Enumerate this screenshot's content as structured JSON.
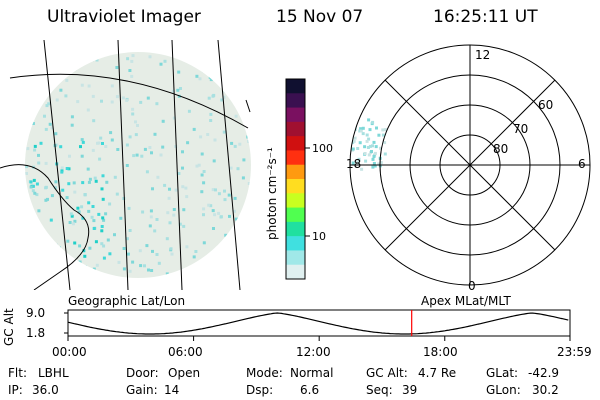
{
  "header": {
    "title": "Ultraviolet Imager",
    "date": "15 Nov 07",
    "time": "16:25:11 UT"
  },
  "colorbar": {
    "unit": "photon cm⁻²s⁻¹",
    "ticks": [
      "100",
      "10"
    ],
    "colors": [
      "#101030",
      "#3a1050",
      "#7a1060",
      "#a01030",
      "#d01010",
      "#ff3010",
      "#ff9a10",
      "#ffdd20",
      "#c8ff20",
      "#50ff50",
      "#20e0a0",
      "#40e0e0",
      "#a0e8e8",
      "#e0f0f0"
    ]
  },
  "map_left": {
    "caption": "Geographic Lat/Lon"
  },
  "map_right": {
    "caption": "Apex MLat/MLT",
    "hours": {
      "top": "12",
      "left": "18",
      "right": "6",
      "bottom": "0"
    },
    "lats": [
      "60",
      "70",
      "80"
    ]
  },
  "altitude_plot": {
    "ylabel": "GC Alt",
    "yticks": [
      "9.0",
      "1.8"
    ],
    "xticks": [
      "00:00",
      "06:00",
      "12:00",
      "18:00",
      "23:59"
    ],
    "current_time_hours": 16.42,
    "marker_color": "#ff0000"
  },
  "info_rows": [
    [
      {
        "label": "Flt:",
        "value": "LBHL"
      },
      {
        "label": "Door:",
        "value": "Open"
      },
      {
        "label": "Mode:",
        "value": "Normal"
      },
      {
        "label": "GC Alt:",
        "value": "4.7 Re"
      },
      {
        "label": "GLat:",
        "value": "-42.9"
      }
    ],
    [
      {
        "label": "IP:",
        "value": "36.0"
      },
      {
        "label": "Gain:",
        "value": "14"
      },
      {
        "label": "Dsp:",
        "value": "6.6"
      },
      {
        "label": "Seq:",
        "value": "39"
      },
      {
        "label": "GLon:",
        "value": "30.2"
      }
    ]
  ]
}
